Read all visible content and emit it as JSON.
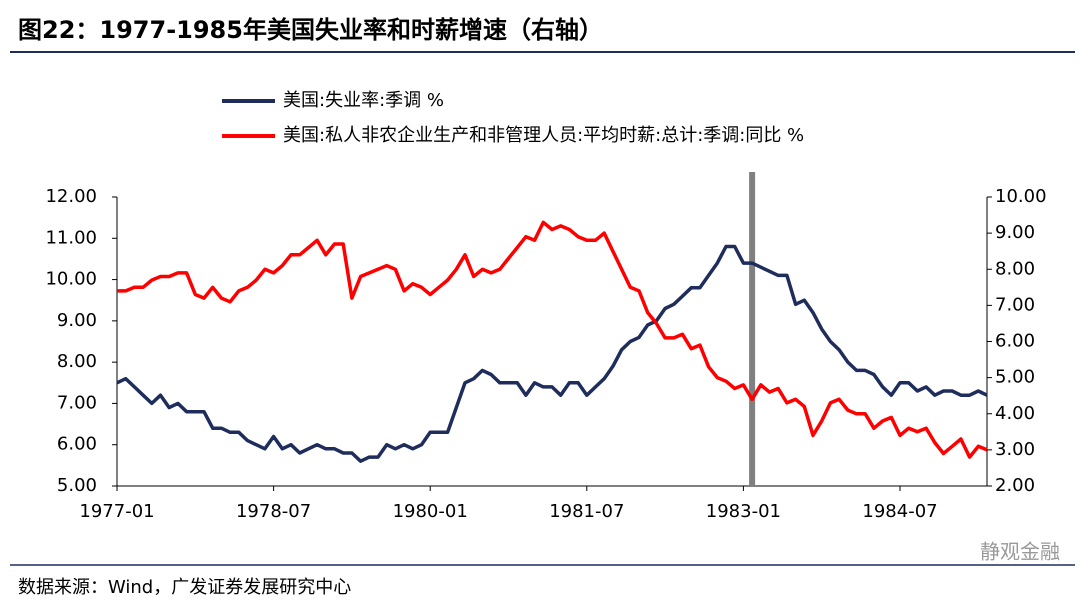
{
  "chart_data": {
    "type": "line",
    "title": "图22：1977-1985年美国失业率和时薪增速（右轴）",
    "source": "数据来源：Wind，广发证券发展研究中心",
    "watermark": "静观金融",
    "x": [
      "1977-01",
      "1977-02",
      "1977-03",
      "1977-04",
      "1977-05",
      "1977-06",
      "1977-07",
      "1977-08",
      "1977-09",
      "1977-10",
      "1977-11",
      "1977-12",
      "1978-01",
      "1978-02",
      "1978-03",
      "1978-04",
      "1978-05",
      "1978-06",
      "1978-07",
      "1978-08",
      "1978-09",
      "1978-10",
      "1978-11",
      "1978-12",
      "1979-01",
      "1979-02",
      "1979-03",
      "1979-04",
      "1979-05",
      "1979-06",
      "1979-07",
      "1979-08",
      "1979-09",
      "1979-10",
      "1979-11",
      "1979-12",
      "1980-01",
      "1980-02",
      "1980-03",
      "1980-04",
      "1980-05",
      "1980-06",
      "1980-07",
      "1980-08",
      "1980-09",
      "1980-10",
      "1980-11",
      "1980-12",
      "1981-01",
      "1981-02",
      "1981-03",
      "1981-04",
      "1981-05",
      "1981-06",
      "1981-07",
      "1981-08",
      "1981-09",
      "1981-10",
      "1981-11",
      "1981-12",
      "1982-01",
      "1982-02",
      "1982-03",
      "1982-04",
      "1982-05",
      "1982-06",
      "1982-07",
      "1982-08",
      "1982-09",
      "1982-10",
      "1982-11",
      "1982-12",
      "1983-01",
      "1983-02",
      "1983-03",
      "1983-04",
      "1983-05",
      "1983-06",
      "1983-07",
      "1983-08",
      "1983-09",
      "1983-10",
      "1983-11",
      "1983-12",
      "1984-01",
      "1984-02",
      "1984-03",
      "1984-04",
      "1984-05",
      "1984-06",
      "1984-07",
      "1984-08",
      "1984-09",
      "1984-10",
      "1984-11",
      "1984-12",
      "1985-01",
      "1985-02",
      "1985-03",
      "1985-04",
      "1985-05"
    ],
    "xlim": [
      "1977-01",
      "1985-05"
    ],
    "xticks": [
      "1977-01",
      "1978-07",
      "1980-01",
      "1981-07",
      "1983-01",
      "1984-07"
    ],
    "highlight_x": "1983-02",
    "ylim": [
      5,
      12
    ],
    "yticks": [
      {
        "value": 5,
        "label": "5.00"
      },
      {
        "value": 6,
        "label": "6.00"
      },
      {
        "value": 7,
        "label": "7.00"
      },
      {
        "value": 8,
        "label": "8.00"
      },
      {
        "value": 9,
        "label": "9.00"
      },
      {
        "value": 10,
        "label": "10.00"
      },
      {
        "value": 11,
        "label": "11.00"
      },
      {
        "value": 12,
        "label": "12.00"
      }
    ],
    "y2lim": [
      2,
      10
    ],
    "y2ticks": [
      {
        "value": 2,
        "label": "2.00"
      },
      {
        "value": 3,
        "label": "3.00"
      },
      {
        "value": 4,
        "label": "4.00"
      },
      {
        "value": 5,
        "label": "5.00"
      },
      {
        "value": 6,
        "label": "6.00"
      },
      {
        "value": 7,
        "label": "7.00"
      },
      {
        "value": 8,
        "label": "8.00"
      },
      {
        "value": 9,
        "label": "9.00"
      },
      {
        "value": 10,
        "label": "10.00"
      }
    ],
    "series": [
      {
        "name": "美国:失业率:季调 %",
        "color": "#1f2d5c",
        "values": [
          7.5,
          7.6,
          7.4,
          7.2,
          7.0,
          7.2,
          6.9,
          7.0,
          6.8,
          6.8,
          6.8,
          6.4,
          6.4,
          6.3,
          6.3,
          6.1,
          6.0,
          5.9,
          6.2,
          5.9,
          6.0,
          5.8,
          5.9,
          6.0,
          5.9,
          5.9,
          5.8,
          5.8,
          5.6,
          5.7,
          5.7,
          6.0,
          5.9,
          6.0,
          5.9,
          6.0,
          6.3,
          6.3,
          6.3,
          6.9,
          7.5,
          7.6,
          7.8,
          7.7,
          7.5,
          7.5,
          7.5,
          7.2,
          7.5,
          7.4,
          7.4,
          7.2,
          7.5,
          7.5,
          7.2,
          7.4,
          7.6,
          7.9,
          8.3,
          8.5,
          8.6,
          8.9,
          9.0,
          9.3,
          9.4,
          9.6,
          9.8,
          9.8,
          10.1,
          10.4,
          10.8,
          10.8,
          10.4,
          10.4,
          10.3,
          10.2,
          10.1,
          10.1,
          9.4,
          9.5,
          9.2,
          8.8,
          8.5,
          8.3,
          8.0,
          7.8,
          7.8,
          7.7,
          7.4,
          7.2,
          7.5,
          7.5,
          7.3,
          7.4,
          7.2,
          7.3,
          7.3,
          7.2,
          7.2,
          7.3,
          7.2
        ]
      },
      {
        "name": "美国:私人非农企业生产和非管理人员:平均时薪:总计:季调:同比 %",
        "color": "#ff0000",
        "axis": "y2",
        "values": [
          7.4,
          7.4,
          7.5,
          7.5,
          7.7,
          7.8,
          7.8,
          7.9,
          7.9,
          7.3,
          7.2,
          7.5,
          7.2,
          7.1,
          7.4,
          7.5,
          7.7,
          8.0,
          7.9,
          8.1,
          8.4,
          8.4,
          8.6,
          8.8,
          8.4,
          8.7,
          8.7,
          7.2,
          7.8,
          7.9,
          8.0,
          8.1,
          8.0,
          7.4,
          7.6,
          7.5,
          7.3,
          7.5,
          7.7,
          8.0,
          8.4,
          7.8,
          8.0,
          7.9,
          8.0,
          8.3,
          8.6,
          8.9,
          8.8,
          9.3,
          9.1,
          9.2,
          9.1,
          8.9,
          8.8,
          8.8,
          9.0,
          8.5,
          8.0,
          7.5,
          7.4,
          6.8,
          6.5,
          6.1,
          6.1,
          6.2,
          5.8,
          5.9,
          5.3,
          5.0,
          4.9,
          4.7,
          4.8,
          4.4,
          4.8,
          4.6,
          4.7,
          4.3,
          4.4,
          4.2,
          3.4,
          3.8,
          4.3,
          4.4,
          4.1,
          4.0,
          4.0,
          3.6,
          3.8,
          3.9,
          3.4,
          3.6,
          3.5,
          3.6,
          3.2,
          2.9,
          3.1,
          3.3,
          2.8,
          3.1,
          3.0
        ]
      }
    ]
  }
}
